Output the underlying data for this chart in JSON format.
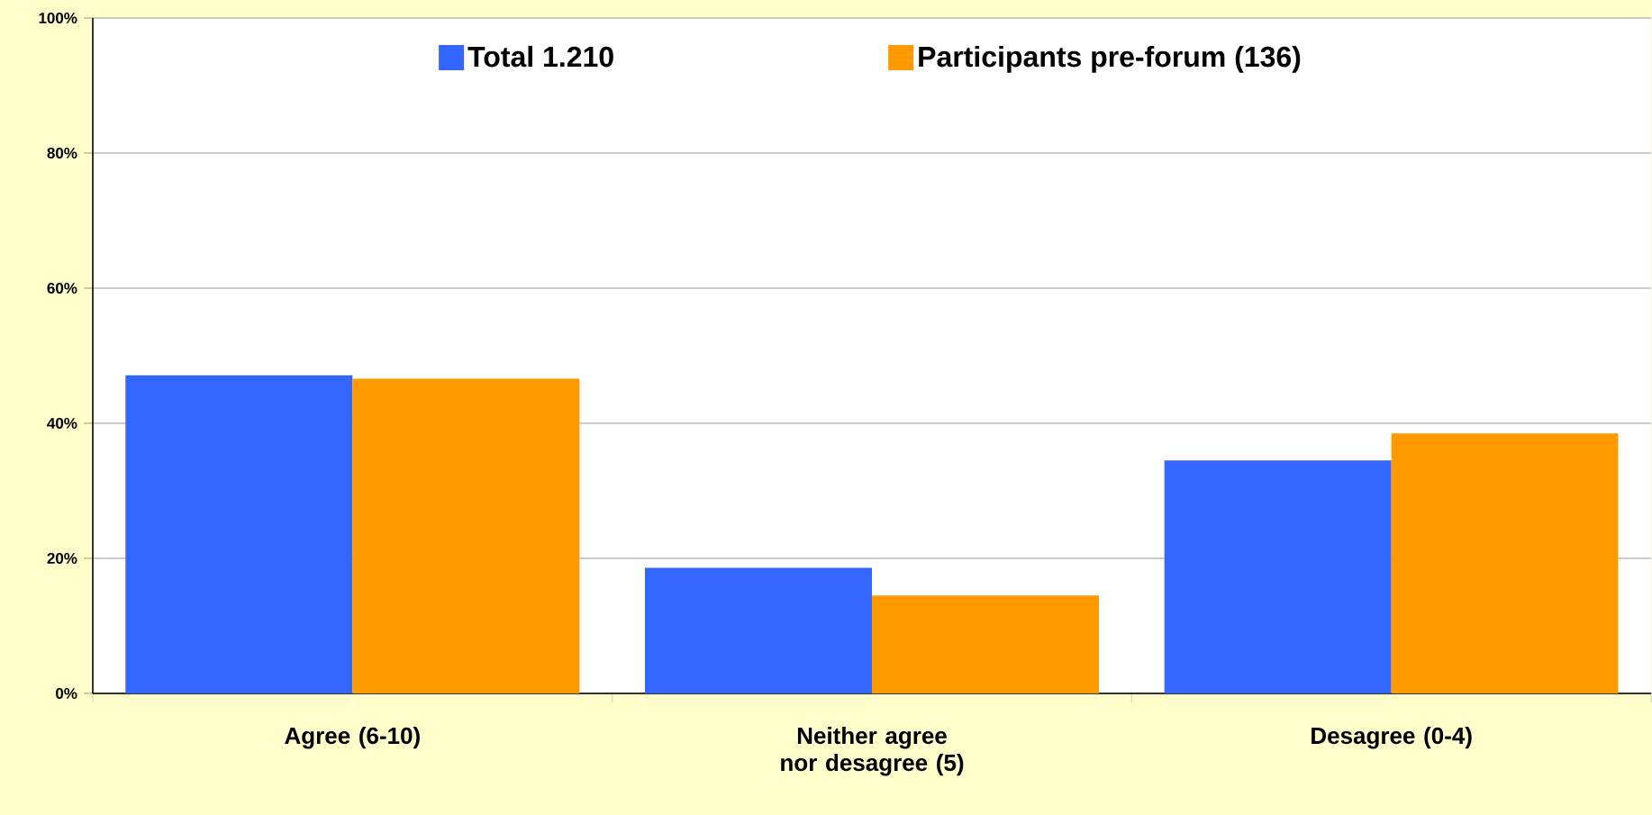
{
  "chart_data": {
    "type": "bar",
    "categories": [
      "Agree (6-10)",
      "Neither agree nor desagree (5)",
      "Desagree (0-4)"
    ],
    "series": [
      {
        "name": "Total 1.210",
        "color": "#3366ff",
        "values": [
          47.1,
          18.6,
          34.5
        ]
      },
      {
        "name": "Participants pre-forum (136)",
        "color": "#ff9900",
        "values": [
          46.6,
          14.5,
          38.5
        ]
      }
    ],
    "ylim": [
      0,
      100
    ],
    "yticks": [
      {
        "value": 0,
        "label": "0%"
      },
      {
        "value": 20,
        "label": "20%"
      },
      {
        "value": 40,
        "label": "40%"
      },
      {
        "value": 60,
        "label": "60%"
      },
      {
        "value": 80,
        "label": "80%"
      },
      {
        "value": 100,
        "label": "100%"
      }
    ],
    "grid": "y",
    "legend": "top"
  }
}
